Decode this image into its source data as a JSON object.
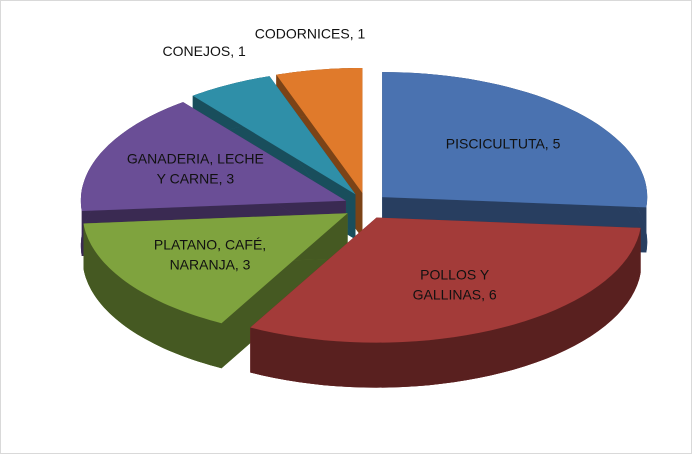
{
  "chart_data": {
    "type": "pie3d",
    "values": [
      5,
      6,
      3,
      3,
      1,
      1
    ],
    "value_labels": [
      [
        "PISCICULTUTA,  5"
      ],
      [
        "POLLOS Y",
        "GALLINAS, 6"
      ],
      [
        "PLATANO, CAFÉ,",
        "NARANJA, 3"
      ],
      [
        "GANADERIA, LECHE",
        "Y CARNE, 3"
      ],
      [
        "CONEJOS, 1"
      ],
      [
        "CODORNICES, 1"
      ]
    ],
    "colors": [
      "#4a72b0",
      "#a33b39",
      "#7fa33e",
      "#6a4e96",
      "#2f8fa8",
      "#e07a2b"
    ]
  }
}
